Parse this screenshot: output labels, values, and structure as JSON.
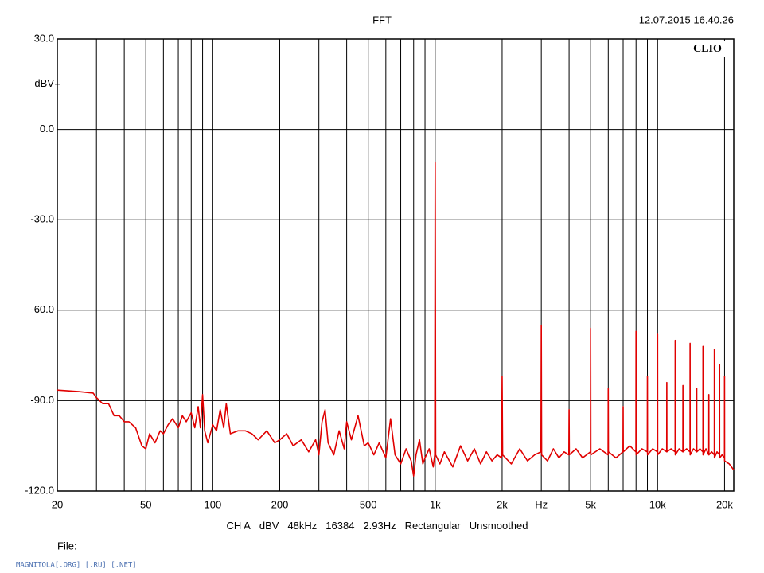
{
  "chart_data": {
    "type": "line",
    "title": "FFT",
    "timestamp": "12.07.2015 16.40.26",
    "brand": "CLIO",
    "ylabel": "dBV",
    "caption": [
      "CH A",
      "dBV",
      "48kHz",
      "16384",
      "2.93Hz",
      "Rectangular",
      "Unsmoothed"
    ],
    "file_label": "File:",
    "footer": "MAGNITOLA[.ORG] [.RU] [.NET]",
    "log_x": true,
    "grid": true,
    "xlim": [
      20,
      22000
    ],
    "ylim": [
      -120,
      30
    ],
    "xticks": [
      20,
      50,
      100,
      200,
      500,
      {
        "value": 1000,
        "label": "1k"
      },
      {
        "value": 2000,
        "label": "2k"
      },
      {
        "value": 3000,
        "label": "Hz"
      },
      {
        "value": 5000,
        "label": "5k"
      },
      {
        "value": 10000,
        "label": "10k"
      },
      {
        "value": 20000,
        "label": "20k"
      }
    ],
    "xgrid": [
      30,
      40,
      60,
      70,
      80,
      90,
      300,
      400,
      600,
      700,
      800,
      900,
      4000,
      6000,
      7000,
      8000,
      9000
    ],
    "yticks": [
      {
        "value": 30,
        "label": "30.0"
      },
      {
        "value": 0,
        "label": "0.0"
      },
      {
        "value": -30,
        "label": "-30.0"
      },
      {
        "value": -60,
        "label": "-60.0"
      },
      {
        "value": -90,
        "label": "-90.0"
      },
      {
        "value": -120,
        "label": "-120.0"
      }
    ],
    "series": [
      {
        "color": "#e00000",
        "x": [
          20,
          25,
          29,
          30,
          32,
          34,
          36,
          38,
          40,
          42,
          45,
          48,
          50,
          52,
          55,
          58,
          60,
          63,
          66,
          70,
          73,
          76,
          80,
          83,
          86,
          88,
          90,
          92,
          95,
          100,
          104,
          108,
          112,
          115,
          120,
          130,
          140,
          150,
          160,
          175,
          190,
          200,
          215,
          230,
          250,
          270,
          290,
          300,
          310,
          320,
          330,
          350,
          370,
          390,
          400,
          420,
          450,
          480,
          500,
          530,
          560,
          600,
          630,
          660,
          700,
          740,
          780,
          800,
          820,
          850,
          880,
          900,
          940,
          980,
          995,
          1000,
          1005,
          1050,
          1100,
          1200,
          1300,
          1400,
          1500,
          1600,
          1700,
          1800,
          1900,
          1990,
          2000,
          2010,
          2200,
          2400,
          2600,
          2800,
          2990,
          3000,
          3010,
          3200,
          3400,
          3600,
          3800,
          3990,
          4000,
          4010,
          4300,
          4600,
          4990,
          5000,
          5010,
          5500,
          5990,
          6000,
          6010,
          6500,
          6990,
          7000,
          7010,
          7500,
          7990,
          8000,
          8010,
          8500,
          8990,
          9000,
          9010,
          9500,
          9990,
          10000,
          10010,
          10500,
          10990,
          11000,
          11010,
          11500,
          11990,
          12000,
          12010,
          12500,
          12990,
          13000,
          13010,
          13500,
          13990,
          14000,
          14010,
          14500,
          14990,
          15000,
          15010,
          15500,
          15990,
          16000,
          16010,
          16500,
          16990,
          17000,
          17010,
          17500,
          17990,
          18000,
          18010,
          18500,
          18990,
          19000,
          19010,
          19500,
          19990,
          20000,
          20010,
          21000,
          22000
        ],
        "values": [
          -86.5,
          -87,
          -87.5,
          -89,
          -91,
          -91,
          -95,
          -95,
          -97,
          -97,
          -99,
          -105,
          -106,
          -101,
          -104,
          -100,
          -101,
          -98,
          -96,
          -99,
          -95,
          -97,
          -94,
          -99,
          -92,
          -99,
          -88,
          -100,
          -104,
          -98,
          -100,
          -93,
          -99,
          -91,
          -101,
          -100,
          -100,
          -101,
          -103,
          -100,
          -104,
          -103,
          -101,
          -105,
          -103,
          -107,
          -103,
          -108,
          -97,
          -93,
          -104,
          -108,
          -100,
          -106,
          -97,
          -103,
          -95,
          -105,
          -104,
          -108,
          -104,
          -109,
          -96,
          -108,
          -111,
          -106,
          -110,
          -115,
          -108,
          -103,
          -111,
          -109,
          -106,
          -112,
          -108,
          -11,
          -108,
          -111,
          -107,
          -112,
          -105,
          -110,
          -106,
          -111,
          -107,
          -110,
          -108,
          -109,
          -82,
          -108,
          -111,
          -106,
          -110,
          -108,
          -107,
          -65,
          -108,
          -110,
          -106,
          -109,
          -107,
          -108,
          -93,
          -108,
          -106,
          -109,
          -107,
          -66,
          -108,
          -106,
          -108,
          -86,
          -107,
          -109,
          -107,
          -92,
          -107,
          -105,
          -107,
          -67,
          -108,
          -106,
          -107,
          -82,
          -108,
          -106,
          -107,
          -68,
          -108,
          -106,
          -107,
          -84,
          -107,
          -106,
          -107,
          -70,
          -108,
          -106,
          -107,
          -85,
          -107,
          -106,
          -107,
          -71,
          -108,
          -106,
          -107,
          -86,
          -107,
          -106,
          -107,
          -72,
          -108,
          -106,
          -108,
          -88,
          -108,
          -107,
          -108,
          -73,
          -109,
          -107,
          -108,
          -78,
          -109,
          -108,
          -109,
          -82,
          -110,
          -111,
          -113
        ]
      }
    ]
  }
}
